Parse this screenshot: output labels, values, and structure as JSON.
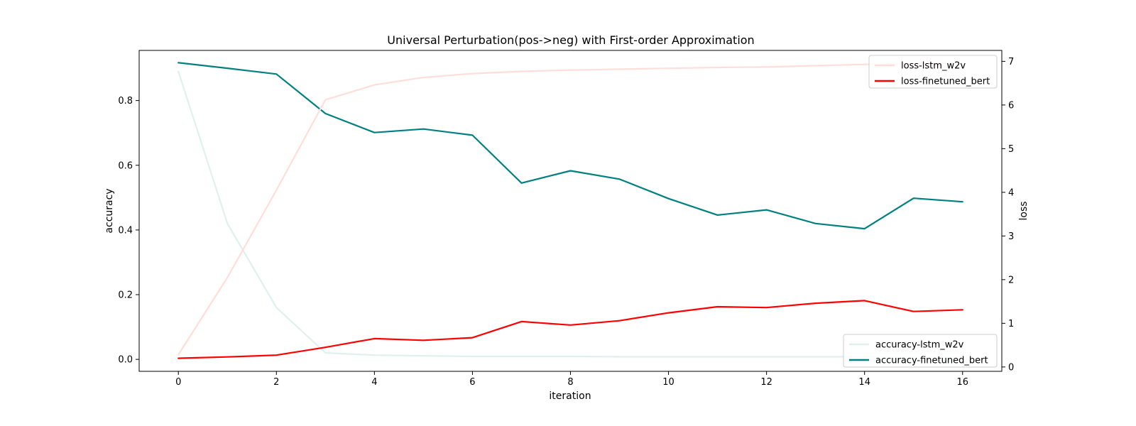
{
  "chart_data": {
    "type": "line",
    "title": "Universal Perturbation(pos->neg) with First-order Approximation",
    "xlabel": "iteration",
    "ylabel_left": "accuracy",
    "ylabel_right": "loss",
    "x": [
      0,
      1,
      2,
      3,
      4,
      5,
      6,
      7,
      8,
      9,
      10,
      11,
      12,
      13,
      14,
      15,
      16
    ],
    "xlim": [
      -0.8,
      16.8
    ],
    "xticks": [
      0,
      2,
      4,
      6,
      8,
      10,
      12,
      14,
      16
    ],
    "ylim_left": [
      -0.037,
      0.955
    ],
    "yticks_left": [
      "0.0",
      "0.2",
      "0.4",
      "0.6",
      "0.8"
    ],
    "ylim_right": [
      -0.1,
      7.25
    ],
    "yticks_right": [
      "0",
      "1",
      "2",
      "3",
      "4",
      "5",
      "6",
      "7"
    ],
    "grid": false,
    "accuracy_series": [
      {
        "name": "accuracy-lstm_w2v",
        "color": "#e0f0ee",
        "values": [
          0.89,
          0.42,
          0.16,
          0.02,
          0.013,
          0.011,
          0.009,
          0.009,
          0.009,
          0.008,
          0.008,
          0.008,
          0.008,
          0.008,
          0.008,
          0.008,
          0.008
        ]
      },
      {
        "name": "accuracy-finetuned_bert",
        "color": "#008080",
        "values": [
          0.917,
          0.9,
          0.882,
          0.76,
          0.701,
          0.712,
          0.693,
          0.545,
          0.583,
          0.557,
          0.497,
          0.446,
          0.462,
          0.42,
          0.404,
          0.498,
          0.487
        ]
      }
    ],
    "loss_series": [
      {
        "name": "loss-lstm_w2v",
        "color": "#ffdeda",
        "values": [
          0.28,
          2.05,
          4.05,
          6.12,
          6.46,
          6.63,
          6.72,
          6.77,
          6.8,
          6.82,
          6.84,
          6.86,
          6.87,
          6.9,
          6.93,
          6.95,
          6.97
        ]
      },
      {
        "name": "loss-finetuned_bert",
        "color": "#ff0000",
        "values": [
          0.2,
          0.23,
          0.27,
          0.45,
          0.65,
          0.61,
          0.67,
          1.04,
          0.96,
          1.06,
          1.24,
          1.38,
          1.36,
          1.46,
          1.52,
          1.27,
          1.31
        ]
      }
    ],
    "legends": {
      "loss": {
        "placement": "upper-right",
        "entries": [
          "loss-lstm_w2v",
          "loss-finetuned_bert"
        ]
      },
      "accuracy": {
        "placement": "lower-right",
        "entries": [
          "accuracy-lstm_w2v",
          "accuracy-finetuned_bert"
        ]
      }
    }
  }
}
